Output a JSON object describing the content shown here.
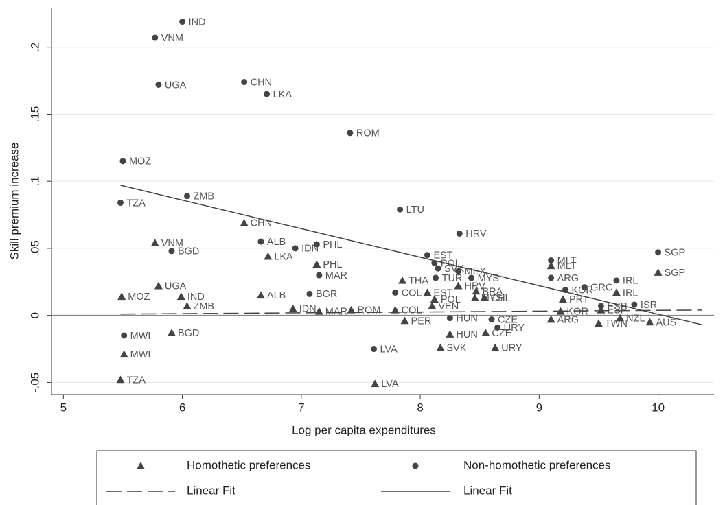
{
  "chart_data": {
    "type": "scatter",
    "xlabel": "Log per capita expenditures",
    "ylabel": "Skill premium increase",
    "xlim": [
      4.9,
      10.47
    ],
    "ylim": [
      -0.059,
      0.229
    ],
    "xticks": [
      5,
      6,
      7,
      8,
      9,
      10
    ],
    "yticks": [
      {
        "value": -0.05,
        "label": "-.05"
      },
      {
        "value": 0,
        "label": "0"
      },
      {
        "value": 0.05,
        "label": ".05"
      },
      {
        "value": 0.1,
        "label": ".1"
      },
      {
        "value": 0.15,
        "label": ".15"
      },
      {
        "value": 0.2,
        "label": ".2"
      }
    ],
    "grid": true,
    "reference_line": 0,
    "series": [
      {
        "name": "Homothetic preferences",
        "marker": "triangle",
        "color": "#444444",
        "labels": [
          "CHN",
          "VNM",
          "LKA",
          "PHL",
          "UGA",
          "MOZ",
          "IND",
          "ALB",
          "ZMB",
          "IDN",
          "MAR",
          "ROM",
          "COL",
          "BGD",
          "MWI",
          "TZA",
          "LVA",
          "PER",
          "SVK",
          "HUN",
          "URY",
          "CZE",
          "THA",
          "EST",
          "POL",
          "VEN",
          "HRV",
          "BRA",
          "MYS",
          "CHL",
          "MLT",
          "SGP",
          "IRL",
          "PRT",
          "ARG",
          "TWN",
          "NZL",
          "AUS",
          "KOR",
          "ESP"
        ],
        "x": [
          6.52,
          5.77,
          6.72,
          7.13,
          5.8,
          5.49,
          5.99,
          6.66,
          6.04,
          6.93,
          7.15,
          7.42,
          7.79,
          5.91,
          5.51,
          5.48,
          7.62,
          7.87,
          8.17,
          8.25,
          8.63,
          8.55,
          7.85,
          8.06,
          8.12,
          8.1,
          8.32,
          8.47,
          8.46,
          8.54,
          9.1,
          10.0,
          9.65,
          9.2,
          9.1,
          9.5,
          9.68,
          9.93,
          9.18,
          9.52
        ],
        "values": [
          0.069,
          0.054,
          0.044,
          0.038,
          0.022,
          0.014,
          0.014,
          0.015,
          0.007,
          0.005,
          0.003,
          0.004,
          0.004,
          -0.013,
          -0.029,
          -0.048,
          -0.051,
          -0.004,
          -0.024,
          -0.014,
          -0.024,
          -0.013,
          0.026,
          0.017,
          0.012,
          0.007,
          0.022,
          0.018,
          0.013,
          0.013,
          0.037,
          0.032,
          0.017,
          0.012,
          -0.003,
          -0.006,
          -0.002,
          -0.005,
          0.003,
          0.004
        ]
      },
      {
        "name": "Non-homothetic preferences",
        "marker": "circle",
        "color": "#444444",
        "labels": [
          "IND",
          "VNM",
          "UGA",
          "CHN",
          "LKA",
          "ROM",
          "MOZ",
          "TZA",
          "ZMB",
          "LTU",
          "HRV",
          "SGP",
          "BGD",
          "ALB",
          "IDN",
          "PHL",
          "MAR",
          "BGR",
          "COL",
          "EST",
          "POL",
          "SVK",
          "MEX",
          "MYS",
          "TUR",
          "MLT",
          "ARG",
          "IRL",
          "GRC",
          "KOR",
          "MWI",
          "LVA",
          "HUN",
          "CZE",
          "URY",
          "ESP",
          "ISR"
        ],
        "x": [
          6.0,
          5.77,
          5.8,
          6.52,
          6.71,
          7.41,
          5.5,
          5.48,
          6.04,
          7.83,
          8.33,
          10.0,
          5.91,
          6.66,
          6.95,
          7.13,
          7.15,
          7.07,
          7.79,
          8.06,
          8.12,
          8.15,
          8.32,
          8.43,
          8.13,
          9.1,
          9.1,
          9.65,
          9.38,
          9.22,
          5.51,
          7.61,
          8.25,
          8.6,
          8.65,
          9.52,
          9.8
        ],
        "values": [
          0.219,
          0.207,
          0.172,
          0.174,
          0.165,
          0.136,
          0.115,
          0.084,
          0.089,
          0.079,
          0.061,
          0.047,
          0.048,
          0.055,
          0.05,
          0.053,
          0.03,
          0.016,
          0.017,
          0.045,
          0.039,
          0.035,
          0.033,
          0.028,
          0.028,
          0.041,
          0.028,
          0.026,
          0.021,
          0.019,
          -0.015,
          -0.025,
          -0.002,
          -0.003,
          -0.009,
          0.007,
          0.008
        ]
      },
      {
        "name": "Linear Fit",
        "marker": "line",
        "dash": "dashed",
        "color": "#444444",
        "x": [
          5.48,
          10.37
        ],
        "values": [
          0.001,
          0.004
        ]
      },
      {
        "name": "Linear Fit",
        "marker": "line",
        "dash": "solid",
        "color": "#444444",
        "x": [
          5.48,
          10.37
        ],
        "values": [
          0.097,
          -0.007
        ]
      }
    ]
  }
}
